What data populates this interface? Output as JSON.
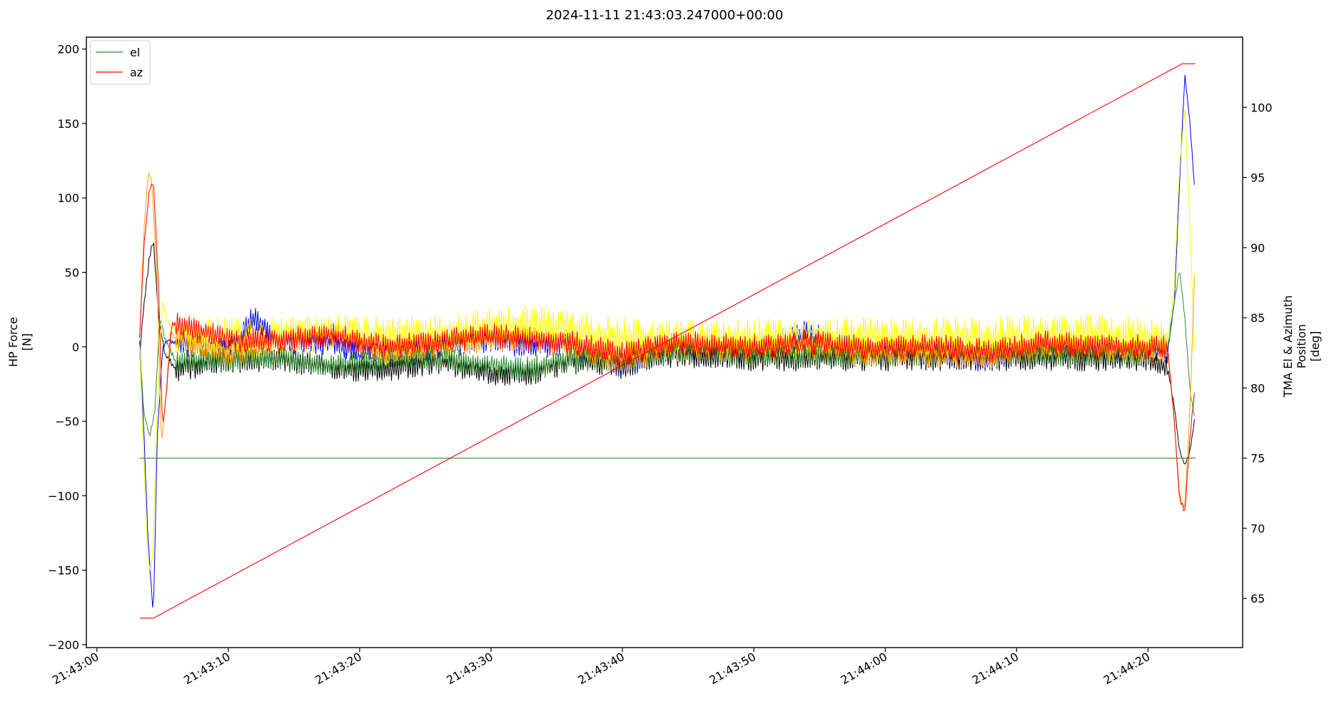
{
  "chart_data": {
    "type": "line",
    "title": "2024-11-11 21:43:03.247000+00:00",
    "ylabel_left": [
      "HP Force",
      "[N]"
    ],
    "ylabel_right": [
      "TMA El & Azimuth",
      "Position",
      "[deg]"
    ],
    "xlabel": "",
    "xlim_seconds_after": {
      "origin": "21:43:00",
      "range": [
        -0.8,
        87.2
      ]
    },
    "x_ticks": [
      {
        "s": 0,
        "label": "21:43:00"
      },
      {
        "s": 10,
        "label": "21:43:10"
      },
      {
        "s": 20,
        "label": "21:43:20"
      },
      {
        "s": 30,
        "label": "21:43:30"
      },
      {
        "s": 40,
        "label": "21:43:40"
      },
      {
        "s": 50,
        "label": "21:43:50"
      },
      {
        "s": 60,
        "label": "21:44:00"
      },
      {
        "s": 70,
        "label": "21:44:10"
      },
      {
        "s": 80,
        "label": "21:44:20"
      }
    ],
    "ylim_left": [
      -202,
      208
    ],
    "yticks_left": [
      -200,
      -150,
      -100,
      -50,
      0,
      50,
      100,
      150,
      200
    ],
    "ylim_right": [
      61.5,
      105
    ],
    "yticks_right": [
      65,
      70,
      75,
      80,
      85,
      90,
      95,
      100
    ],
    "grid": false,
    "legend_position": "top-left",
    "legend": [
      {
        "name": "el",
        "color": "#2e8b2e"
      },
      {
        "name": "az",
        "color": "#ff0000"
      }
    ],
    "position_series": [
      {
        "name": "el",
        "axis": "right",
        "color": "#2e8b2e",
        "x": [
          3.25,
          83.6
        ],
        "y": [
          75.0,
          75.0
        ]
      },
      {
        "name": "az",
        "axis": "right",
        "color": "#ff0000",
        "x": [
          3.25,
          4.3,
          82.6,
          83.6
        ],
        "y": [
          63.6,
          63.6,
          103.1,
          103.1
        ]
      }
    ],
    "force_series": [
      {
        "color": "#0000ff",
        "keys": [
          [
            3.25,
            3
          ],
          [
            3.5,
            -40
          ],
          [
            3.9,
            -130
          ],
          [
            4.3,
            -182
          ],
          [
            4.6,
            -60
          ],
          [
            5.0,
            0
          ],
          [
            5.5,
            5
          ],
          [
            6,
            2
          ],
          [
            10,
            -2
          ],
          [
            12,
            20
          ],
          [
            14,
            4
          ],
          [
            18,
            2
          ],
          [
            22,
            -5
          ],
          [
            26,
            0
          ],
          [
            30,
            5
          ],
          [
            33,
            0
          ],
          [
            36,
            3
          ],
          [
            40,
            -14
          ],
          [
            44,
            0
          ],
          [
            50,
            -3
          ],
          [
            54,
            10
          ],
          [
            58,
            -5
          ],
          [
            64,
            -5
          ],
          [
            68,
            -10
          ],
          [
            72,
            0
          ],
          [
            76,
            -3
          ],
          [
            80,
            -5
          ],
          [
            81.5,
            -3
          ],
          [
            82,
            30
          ],
          [
            82.4,
            110
          ],
          [
            82.8,
            183
          ],
          [
            83.2,
            150
          ],
          [
            83.6,
            100
          ]
        ]
      },
      {
        "color": "#000000",
        "keys": [
          [
            3.25,
            -5
          ],
          [
            3.6,
            30
          ],
          [
            4.0,
            60
          ],
          [
            4.3,
            72
          ],
          [
            4.7,
            20
          ],
          [
            5.2,
            -5
          ],
          [
            6,
            -15
          ],
          [
            10,
            -10
          ],
          [
            14,
            -8
          ],
          [
            18,
            -15
          ],
          [
            22,
            -15
          ],
          [
            26,
            -10
          ],
          [
            30,
            -18
          ],
          [
            33,
            -18
          ],
          [
            36,
            -10
          ],
          [
            40,
            -12
          ],
          [
            44,
            -5
          ],
          [
            50,
            -8
          ],
          [
            54,
            -8
          ],
          [
            58,
            -8
          ],
          [
            64,
            -8
          ],
          [
            68,
            -8
          ],
          [
            72,
            -8
          ],
          [
            76,
            -8
          ],
          [
            80,
            -8
          ],
          [
            81.5,
            -15
          ],
          [
            82,
            -40
          ],
          [
            82.4,
            -70
          ],
          [
            82.8,
            -80
          ],
          [
            83.2,
            -70
          ],
          [
            83.6,
            -45
          ]
        ]
      },
      {
        "color": "#2e8b2e",
        "keys": [
          [
            3.25,
            -5
          ],
          [
            3.6,
            -45
          ],
          [
            4.0,
            -60
          ],
          [
            4.4,
            -45
          ],
          [
            4.8,
            20
          ],
          [
            5.2,
            5
          ],
          [
            6,
            -10
          ],
          [
            10,
            -8
          ],
          [
            14,
            -8
          ],
          [
            18,
            -12
          ],
          [
            22,
            -10
          ],
          [
            26,
            -8
          ],
          [
            30,
            -12
          ],
          [
            33,
            -15
          ],
          [
            36,
            -8
          ],
          [
            40,
            -8
          ],
          [
            44,
            -3
          ],
          [
            50,
            -5
          ],
          [
            54,
            -5
          ],
          [
            58,
            -5
          ],
          [
            64,
            -5
          ],
          [
            68,
            -5
          ],
          [
            72,
            -5
          ],
          [
            76,
            -5
          ],
          [
            80,
            -5
          ],
          [
            81.5,
            0
          ],
          [
            82,
            30
          ],
          [
            82.4,
            52
          ],
          [
            82.8,
            20
          ],
          [
            83.2,
            -30
          ],
          [
            83.6,
            -50
          ]
        ]
      },
      {
        "color": "#ffff00",
        "keys": [
          [
            3.25,
            0
          ],
          [
            3.5,
            -60
          ],
          [
            3.9,
            -145
          ],
          [
            4.2,
            -150
          ],
          [
            4.6,
            -40
          ],
          [
            5.0,
            30
          ],
          [
            5.5,
            15
          ],
          [
            6,
            10
          ],
          [
            10,
            5
          ],
          [
            14,
            6
          ],
          [
            18,
            12
          ],
          [
            22,
            5
          ],
          [
            26,
            8
          ],
          [
            30,
            12
          ],
          [
            33,
            15
          ],
          [
            36,
            10
          ],
          [
            40,
            6
          ],
          [
            44,
            4
          ],
          [
            50,
            5
          ],
          [
            54,
            5
          ],
          [
            58,
            6
          ],
          [
            64,
            6
          ],
          [
            68,
            6
          ],
          [
            72,
            8
          ],
          [
            76,
            8
          ],
          [
            80,
            6
          ],
          [
            81.5,
            5
          ],
          [
            82,
            40
          ],
          [
            82.4,
            120
          ],
          [
            82.8,
            160
          ],
          [
            83.2,
            80
          ],
          [
            83.6,
            -20
          ]
        ]
      },
      {
        "color": "#ffa500",
        "keys": [
          [
            3.25,
            5
          ],
          [
            3.6,
            80
          ],
          [
            3.9,
            117
          ],
          [
            4.2,
            110
          ],
          [
            4.6,
            40
          ],
          [
            4.9,
            -65
          ],
          [
            5.2,
            -40
          ],
          [
            5.6,
            10
          ],
          [
            6,
            5
          ],
          [
            10,
            -5
          ],
          [
            14,
            5
          ],
          [
            18,
            8
          ],
          [
            22,
            -5
          ],
          [
            26,
            0
          ],
          [
            30,
            5
          ],
          [
            33,
            5
          ],
          [
            36,
            0
          ],
          [
            40,
            -10
          ],
          [
            44,
            2
          ],
          [
            50,
            -3
          ],
          [
            54,
            2
          ],
          [
            58,
            -5
          ],
          [
            64,
            -5
          ],
          [
            68,
            -8
          ],
          [
            72,
            0
          ],
          [
            76,
            -2
          ],
          [
            80,
            -3
          ],
          [
            81.5,
            -3
          ],
          [
            82,
            -50
          ],
          [
            82.4,
            -105
          ],
          [
            82.8,
            -108
          ],
          [
            83.2,
            -40
          ],
          [
            83.6,
            65
          ]
        ]
      },
      {
        "color": "#ff0000",
        "keys": [
          [
            3.25,
            5
          ],
          [
            3.6,
            70
          ],
          [
            4.0,
            105
          ],
          [
            4.3,
            112
          ],
          [
            4.7,
            40
          ],
          [
            5.0,
            -55
          ],
          [
            5.3,
            -30
          ],
          [
            5.7,
            15
          ],
          [
            6,
            15
          ],
          [
            10,
            5
          ],
          [
            14,
            5
          ],
          [
            18,
            8
          ],
          [
            22,
            0
          ],
          [
            26,
            3
          ],
          [
            30,
            8
          ],
          [
            33,
            5
          ],
          [
            36,
            3
          ],
          [
            40,
            -5
          ],
          [
            44,
            3
          ],
          [
            50,
            0
          ],
          [
            54,
            3
          ],
          [
            58,
            0
          ],
          [
            64,
            0
          ],
          [
            68,
            -3
          ],
          [
            72,
            3
          ],
          [
            76,
            0
          ],
          [
            80,
            0
          ],
          [
            81.5,
            0
          ],
          [
            82,
            -50
          ],
          [
            82.4,
            -100
          ],
          [
            82.8,
            -112
          ],
          [
            83.2,
            -60
          ],
          [
            83.6,
            -25
          ]
        ]
      }
    ]
  }
}
